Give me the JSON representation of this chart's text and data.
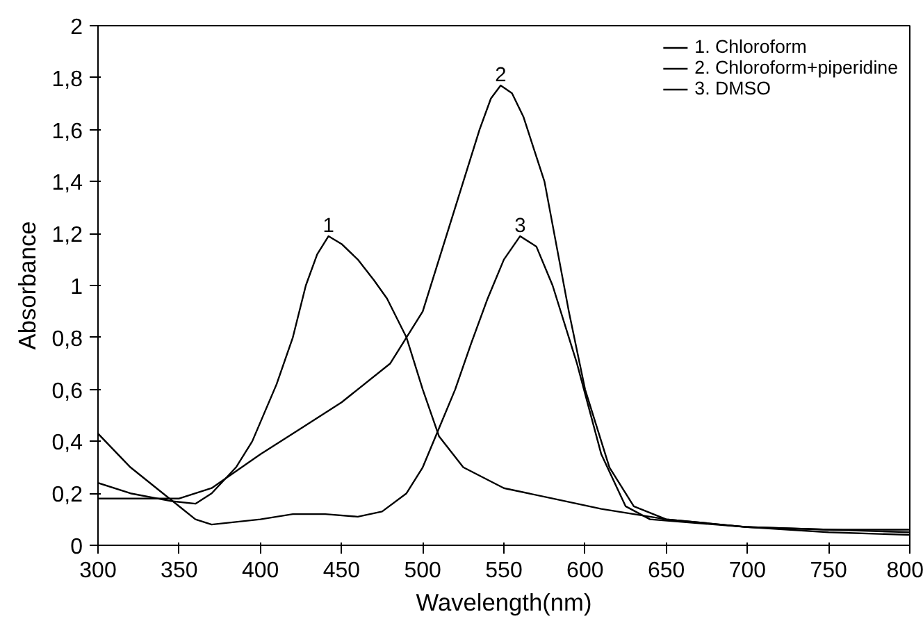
{
  "chart_data": {
    "type": "line",
    "xlabel": "Wavelength(nm)",
    "ylabel": "Absorbance",
    "xlim": [
      300,
      800
    ],
    "xticks": [
      300,
      350,
      400,
      450,
      500,
      550,
      600,
      650,
      700,
      750,
      800
    ],
    "ylim": [
      0,
      2
    ],
    "yticks": [
      0,
      {
        "value": 0.2,
        "label": "0,2"
      },
      {
        "value": 0.4,
        "label": "0,4"
      },
      {
        "value": 0.6,
        "label": "0,6"
      },
      {
        "value": 0.8,
        "label": "0,8"
      },
      1,
      {
        "value": 1.2,
        "label": "1,2"
      },
      {
        "value": 1.4,
        "label": "1,4"
      },
      {
        "value": 1.6,
        "label": "1,6"
      },
      {
        "value": 1.8,
        "label": "1,8"
      },
      2
    ],
    "grid": false,
    "legend": "top right",
    "marker": "none",
    "line_style": "solid",
    "series": [
      {
        "name": "1. Chloroform",
        "color": "#000000",
        "x": [
          300,
          320,
          345,
          360,
          370,
          385,
          395,
          410,
          420,
          428,
          435,
          442,
          450,
          460,
          470,
          478,
          490,
          500,
          510,
          525,
          550,
          580,
          610,
          650,
          700,
          750,
          800
        ],
        "values": [
          0.24,
          0.2,
          0.17,
          0.16,
          0.2,
          0.3,
          0.4,
          0.62,
          0.8,
          1.0,
          1.12,
          1.19,
          1.16,
          1.1,
          1.02,
          0.95,
          0.8,
          0.6,
          0.42,
          0.3,
          0.22,
          0.18,
          0.14,
          0.1,
          0.07,
          0.06,
          0.06
        ]
      },
      {
        "name": "2. Chloroform+piperidine",
        "color": "#000000",
        "x": [
          300,
          325,
          350,
          370,
          400,
          425,
          450,
          480,
          500,
          510,
          520,
          535,
          542,
          548,
          555,
          562,
          575,
          590,
          600,
          615,
          630,
          650,
          700,
          750,
          800
        ],
        "values": [
          0.18,
          0.18,
          0.18,
          0.22,
          0.35,
          0.45,
          0.55,
          0.7,
          0.9,
          1.1,
          1.3,
          1.6,
          1.72,
          1.77,
          1.74,
          1.65,
          1.4,
          0.9,
          0.6,
          0.3,
          0.15,
          0.1,
          0.07,
          0.06,
          0.05
        ]
      },
      {
        "name": "3. DMSO",
        "color": "#000000",
        "x": [
          300,
          320,
          340,
          360,
          370,
          400,
          420,
          440,
          460,
          475,
          490,
          500,
          510,
          520,
          530,
          540,
          550,
          560,
          570,
          580,
          595,
          610,
          625,
          640,
          700,
          750,
          800
        ],
        "values": [
          0.43,
          0.3,
          0.2,
          0.1,
          0.08,
          0.1,
          0.12,
          0.12,
          0.11,
          0.13,
          0.2,
          0.3,
          0.45,
          0.6,
          0.78,
          0.95,
          1.1,
          1.19,
          1.15,
          1.0,
          0.7,
          0.35,
          0.15,
          0.1,
          0.07,
          0.05,
          0.04
        ]
      }
    ],
    "annotations": [
      {
        "text": "1",
        "x": 442,
        "y": 1.19
      },
      {
        "text": "2",
        "x": 548,
        "y": 1.77
      },
      {
        "text": "3",
        "x": 560,
        "y": 1.19
      }
    ]
  }
}
